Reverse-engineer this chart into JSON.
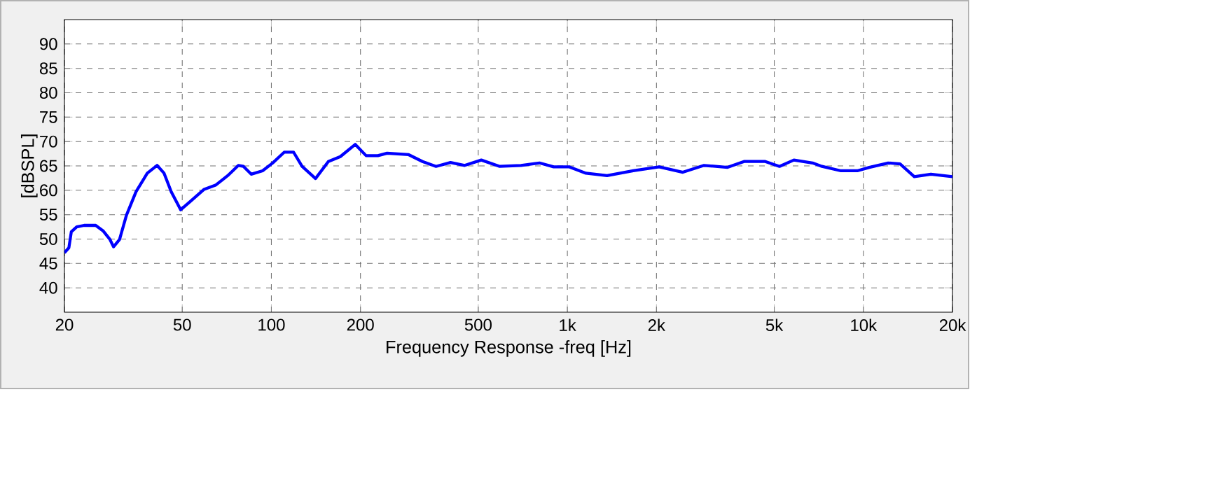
{
  "chart_data": {
    "type": "line",
    "xlabel": "Frequency Response -freq [Hz]",
    "ylabel": "[dBSPL]",
    "log": "x",
    "xlim": [
      20,
      20000
    ],
    "ylim": [
      35,
      95
    ],
    "xticks": [
      20,
      50,
      100,
      200,
      500,
      {
        "value": 1000,
        "label": "1k"
      },
      {
        "value": 2000,
        "label": "2k"
      },
      {
        "value": 5000,
        "label": "5k"
      },
      {
        "value": 10000,
        "label": "10k"
      },
      {
        "value": 20000,
        "label": "20k"
      }
    ],
    "yticks": [
      40,
      45,
      50,
      55,
      60,
      65,
      70,
      75,
      80,
      85,
      90
    ],
    "grid": true,
    "marker": "none",
    "line_style": "solid",
    "series": [
      {
        "color": "#0000ff",
        "x": [
          20,
          20.7,
          21.1,
          22,
          23.3,
          25.5,
          27,
          28.5,
          29.3,
          30.7,
          32.4,
          34.9,
          38.1,
          41.1,
          43.4,
          45.9,
          49.4,
          53.2,
          59.3,
          65,
          71.2,
          77.4,
          80.5,
          85.5,
          93.4,
          101,
          110.5,
          118.9,
          127,
          141,
          155.8,
          171,
          192,
          209,
          229,
          246,
          291,
          324,
          360,
          403,
          450,
          512,
          591,
          697,
          805,
          899,
          1016,
          1155,
          1362,
          1670,
          2042,
          2455,
          2895,
          3477,
          3952,
          4662,
          5207,
          5823,
          6736,
          7245,
          8394,
          9543,
          10470,
          12130,
          13300,
          14860,
          16910,
          20000
        ],
        "values": [
          47.2,
          48.2,
          51.5,
          52.5,
          52.8,
          52.8,
          51.7,
          49.9,
          48.4,
          49.9,
          54.9,
          59.7,
          63.5,
          65.1,
          63.5,
          59.7,
          56.0,
          57.7,
          60.2,
          61.1,
          63.0,
          65.1,
          64.9,
          63.3,
          64.0,
          65.6,
          67.8,
          67.8,
          64.9,
          62.4,
          65.9,
          66.9,
          69.4,
          67.1,
          67.1,
          67.6,
          67.3,
          65.9,
          64.9,
          65.7,
          65.1,
          66.2,
          64.9,
          65.1,
          65.6,
          64.8,
          64.8,
          63.5,
          63.0,
          64.0,
          64.8,
          63.7,
          65.1,
          64.7,
          65.9,
          65.9,
          64.9,
          66.2,
          65.6,
          64.9,
          64.0,
          64.0,
          64.7,
          65.6,
          65.4,
          62.8,
          63.3,
          62.8
        ]
      }
    ]
  }
}
